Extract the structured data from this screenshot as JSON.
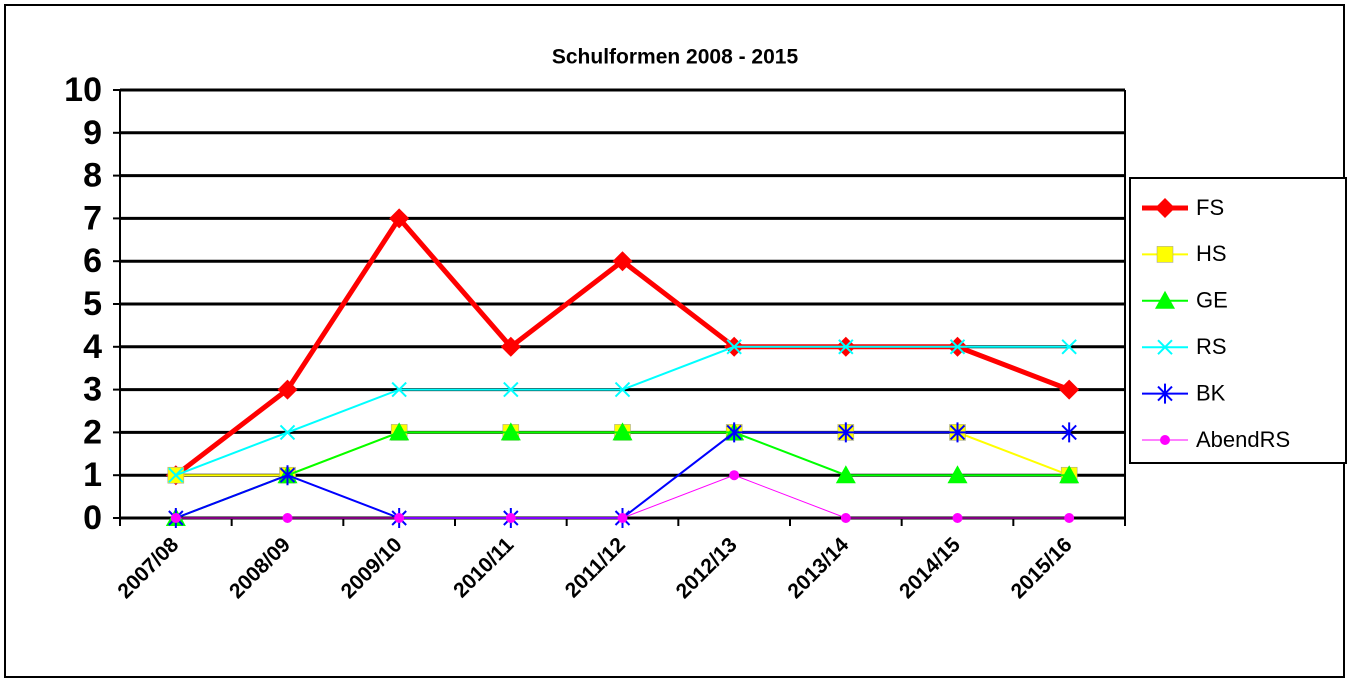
{
  "chart_data": {
    "type": "line",
    "title": "Schulformen 2008 - 2015",
    "categories": [
      "2007/08",
      "2008/09",
      "2009/10",
      "2010/11",
      "2011/12",
      "2012/13",
      "2013/14",
      "2014/15",
      "2015/16"
    ],
    "series": [
      {
        "name": "FS",
        "color": "#ff0000",
        "marker": "diamond",
        "values": [
          1,
          3,
          7,
          4,
          6,
          4,
          4,
          4,
          3
        ]
      },
      {
        "name": "HS",
        "color": "#ffff00",
        "marker": "square",
        "values": [
          1,
          1,
          2,
          2,
          2,
          2,
          2,
          2,
          1
        ]
      },
      {
        "name": "GE",
        "color": "#00ff00",
        "marker": "triangle",
        "values": [
          0,
          1,
          2,
          2,
          2,
          2,
          1,
          1,
          1
        ]
      },
      {
        "name": "RS",
        "color": "#00ffff",
        "marker": "x",
        "values": [
          1,
          2,
          3,
          3,
          3,
          4,
          4,
          4,
          4
        ]
      },
      {
        "name": "BK",
        "color": "#0000ff",
        "marker": "star",
        "values": [
          0,
          1,
          0,
          0,
          0,
          2,
          2,
          2,
          2
        ]
      },
      {
        "name": "AbendRS",
        "color": "#ff00ff",
        "marker": "circle",
        "values": [
          0,
          0,
          0,
          0,
          0,
          1,
          0,
          0,
          0
        ]
      }
    ],
    "ylim": [
      0,
      10
    ],
    "yticks": [
      0,
      1,
      2,
      3,
      4,
      5,
      6,
      7,
      8,
      9,
      10
    ],
    "grid": true,
    "legend": "right"
  }
}
